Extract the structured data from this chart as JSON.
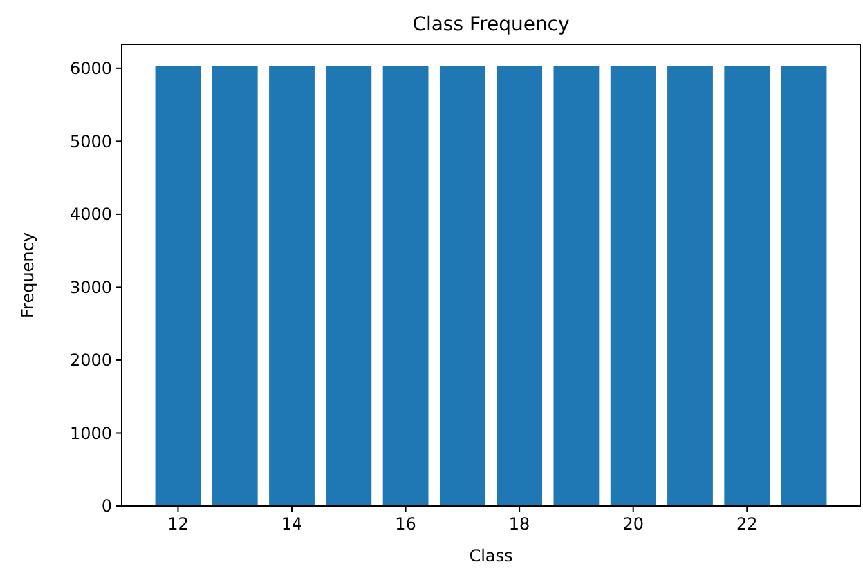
{
  "chart_data": {
    "type": "bar",
    "title": "Class Frequency",
    "xlabel": "Class",
    "ylabel": "Frequency",
    "x": [
      12,
      13,
      14,
      15,
      16,
      17,
      18,
      19,
      20,
      21,
      22,
      23
    ],
    "values": [
      6030,
      6030,
      6030,
      6030,
      6030,
      6030,
      6030,
      6030,
      6030,
      6030,
      6030,
      6030
    ],
    "color": "#1f77b4",
    "xlim": [
      11.01,
      23.99
    ],
    "xticks": [
      12,
      14,
      16,
      18,
      20,
      22
    ],
    "ylim": [
      0,
      6330
    ],
    "yticks": [
      0,
      1000,
      2000,
      3000,
      4000,
      5000,
      6000
    ]
  }
}
